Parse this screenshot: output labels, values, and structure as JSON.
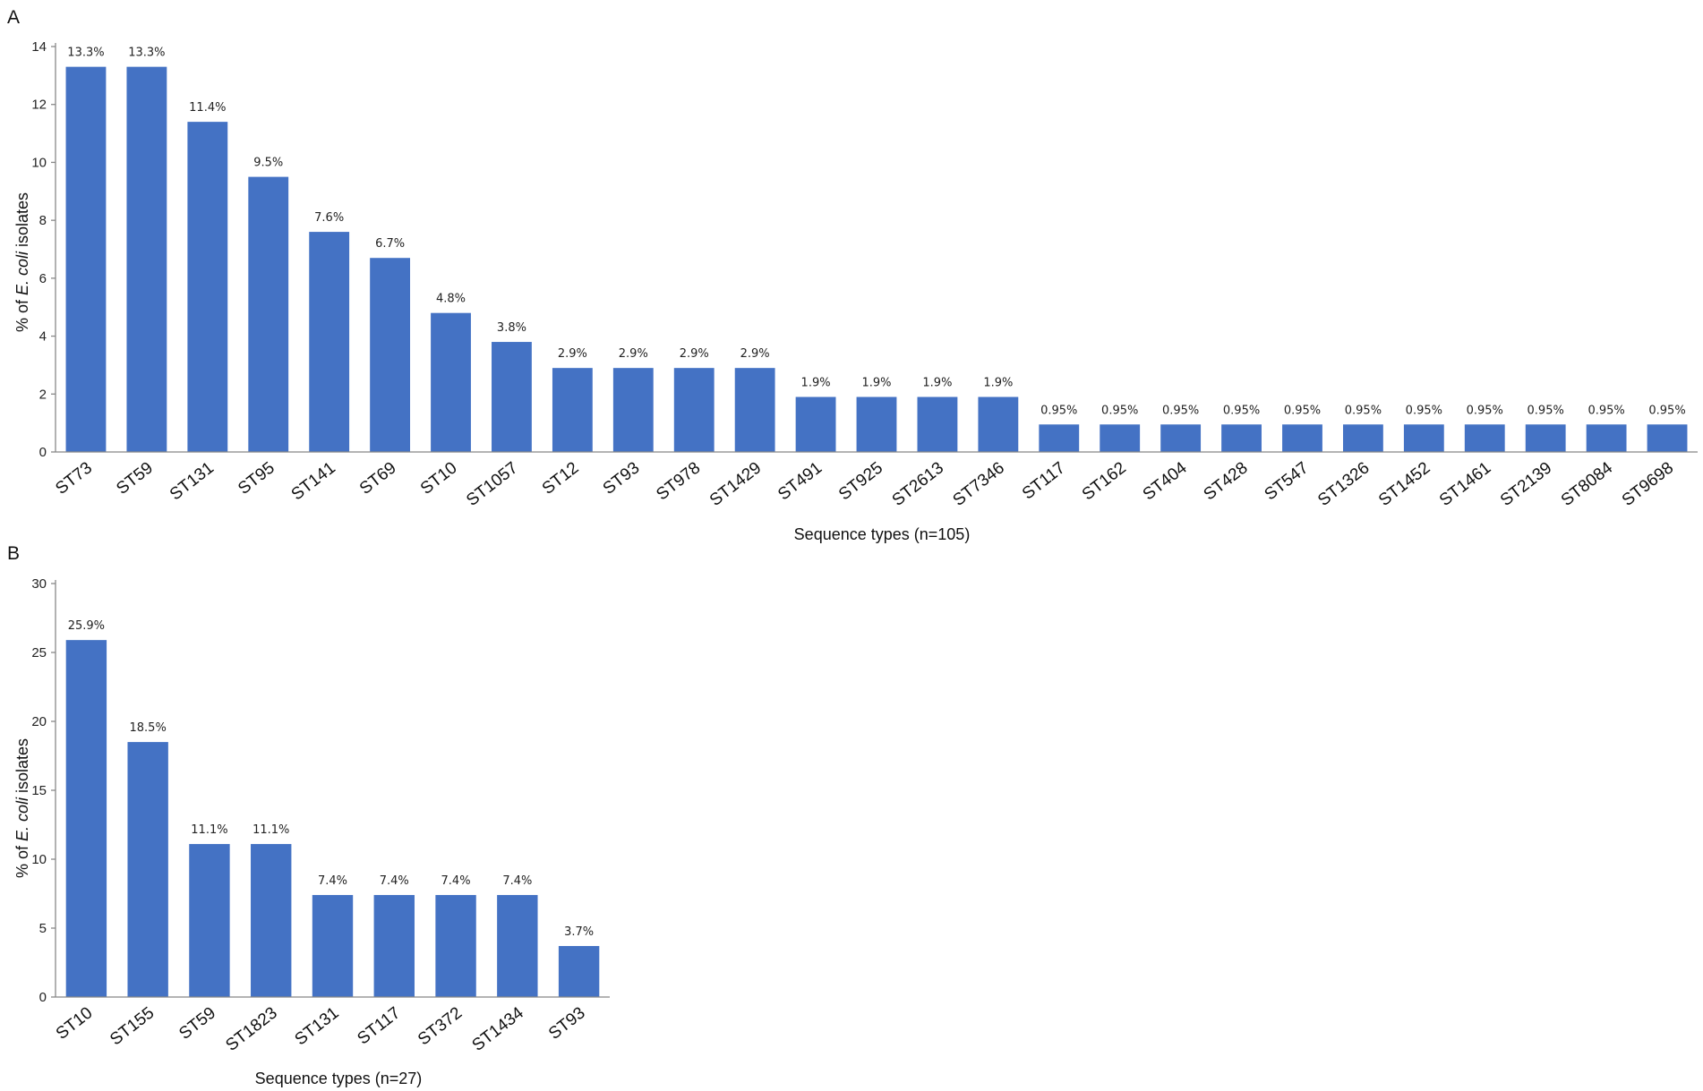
{
  "colors": {
    "bar": "#4472C4",
    "axis": "#888888",
    "text": "#111111"
  },
  "chart_data": [
    {
      "type": "bar",
      "panel_label": "A",
      "title": "",
      "xlabel": "Sequence types (n=105)",
      "ylabel_parts": [
        "% of ",
        "E. coli",
        " isolates"
      ],
      "ylim": [
        0,
        14
      ],
      "yticks": [
        0,
        2,
        4,
        6,
        8,
        10,
        12,
        14
      ],
      "grid": false,
      "categories": [
        "ST73",
        "ST59",
        "ST131",
        "ST95",
        "ST141",
        "ST69",
        "ST10",
        "ST1057",
        "ST12",
        "ST93",
        "ST978",
        "ST1429",
        "ST491",
        "ST925",
        "ST2613",
        "ST7346",
        "ST117",
        "ST162",
        "ST404",
        "ST428",
        "ST547",
        "ST1326",
        "ST1452",
        "ST1461",
        "ST2139",
        "ST8084",
        "ST9698"
      ],
      "values": [
        13.3,
        13.3,
        11.4,
        9.5,
        7.6,
        6.7,
        4.8,
        3.8,
        2.9,
        2.9,
        2.9,
        2.9,
        1.9,
        1.9,
        1.9,
        1.9,
        0.95,
        0.95,
        0.95,
        0.95,
        0.95,
        0.95,
        0.95,
        0.95,
        0.95,
        0.95,
        0.95
      ],
      "data_labels": [
        "13.3%",
        "13.3%",
        "11.4%",
        "9.5%",
        "7.6%",
        "6.7%",
        "4.8%",
        "3.8%",
        "2.9%",
        "2.9%",
        "2.9%",
        "2.9%",
        "1.9%",
        "1.9%",
        "1.9%",
        "1.9%",
        "0.95%",
        "0.95%",
        "0.95%",
        "0.95%",
        "0.95%",
        "0.95%",
        "0.95%",
        "0.95%",
        "0.95%",
        "0.95%",
        "0.95%"
      ]
    },
    {
      "type": "bar",
      "panel_label": "B",
      "title": "",
      "xlabel": "Sequence types (n=27)",
      "ylabel_parts": [
        "% of ",
        "E. coli",
        " isolates"
      ],
      "ylim": [
        0,
        30
      ],
      "yticks": [
        0,
        5,
        10,
        15,
        20,
        25,
        30
      ],
      "grid": false,
      "categories": [
        "ST10",
        "ST155",
        "ST59",
        "ST1823",
        "ST131",
        "ST117",
        "ST372",
        "ST1434",
        "ST93"
      ],
      "values": [
        25.9,
        18.5,
        11.1,
        11.1,
        7.4,
        7.4,
        7.4,
        7.4,
        3.7
      ],
      "data_labels": [
        "25.9%",
        "18.5%",
        "11.1%",
        "11.1%",
        "7.4%",
        "7.4%",
        "7.4%",
        "7.4%",
        "3.7%"
      ]
    }
  ]
}
